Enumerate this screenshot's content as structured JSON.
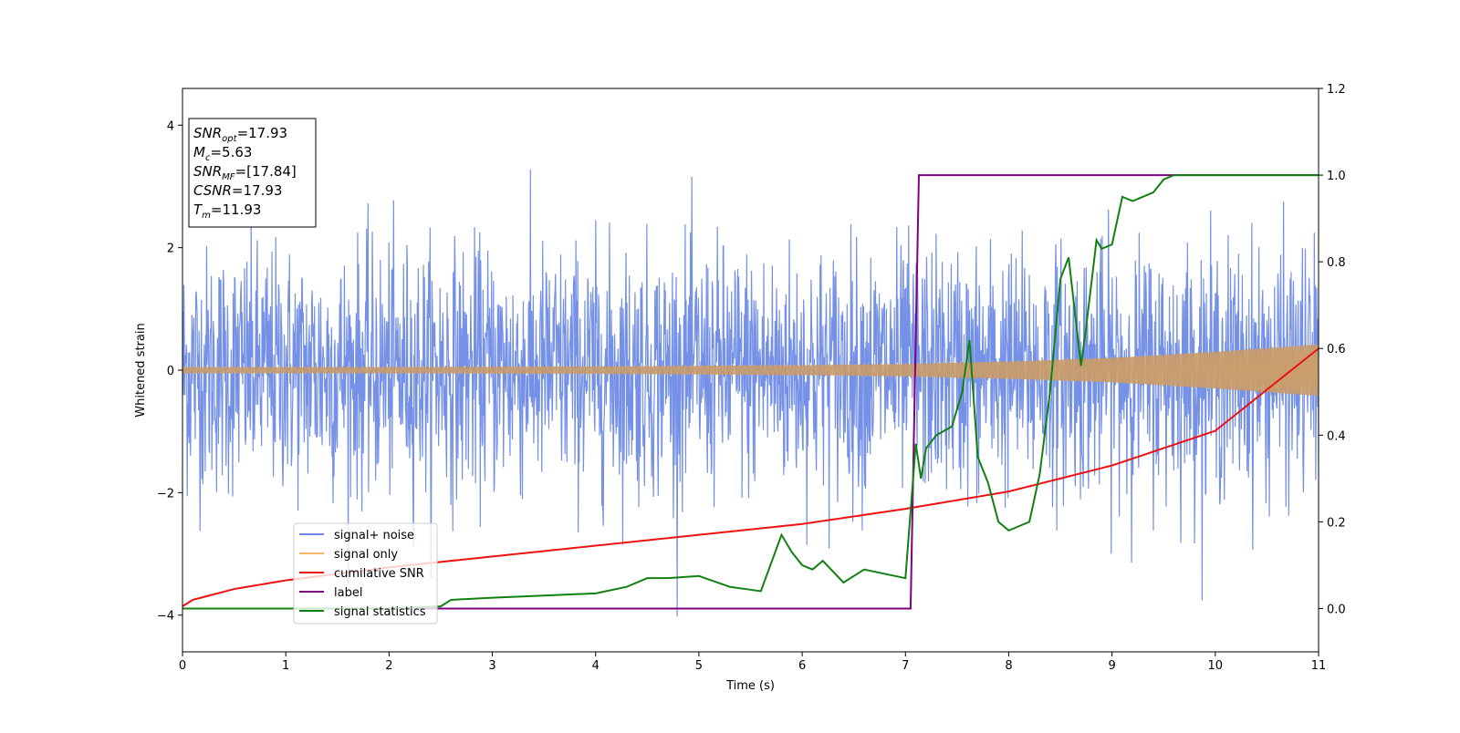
{
  "chart_data": {
    "type": "line",
    "title": "",
    "xlabel": "Time (s)",
    "ylabel": "Whitened strain",
    "y2label": "",
    "xlim": [
      0,
      11
    ],
    "ylim": [
      -4.6,
      4.6
    ],
    "y2lim": [
      -0.1,
      1.2
    ],
    "xticks": [
      "0",
      "1",
      "2",
      "3",
      "4",
      "5",
      "6",
      "7",
      "8",
      "9",
      "10",
      "11"
    ],
    "yticks": [
      "−4",
      "−2",
      "0",
      "2",
      "4"
    ],
    "y2ticks": [
      "0.0",
      "0.2",
      "0.4",
      "0.6",
      "0.8",
      "1.0",
      "1.2"
    ],
    "grid": false,
    "legend_position": "lower-left",
    "series": [
      {
        "name": "signal+ noise",
        "axis": "left",
        "color": "#6d8ae6",
        "description_values": {
          "envelope_min": -4.1,
          "envelope_max": 4.1,
          "std": 1.0
        }
      },
      {
        "name": "signal only",
        "axis": "left",
        "color": "#f5b862",
        "values": {
          "t": [
            0,
            2,
            4,
            6,
            7,
            8,
            9,
            10,
            11
          ],
          "amplitude": [
            0.05,
            0.05,
            0.06,
            0.08,
            0.1,
            0.14,
            0.2,
            0.3,
            0.42
          ]
        }
      },
      {
        "name": "cumilative SNR",
        "axis": "right",
        "color": "#ee1111",
        "x": [
          0,
          0.1,
          0.5,
          1,
          2,
          3,
          4,
          5,
          6,
          7,
          8,
          9,
          10,
          11
        ],
        "y": [
          0.005,
          0.02,
          0.045,
          0.065,
          0.095,
          0.12,
          0.145,
          0.17,
          0.195,
          0.23,
          0.27,
          0.33,
          0.41,
          0.6
        ]
      },
      {
        "name": "label",
        "axis": "right",
        "color": "#800080",
        "x": [
          0,
          7.05,
          7.13,
          11
        ],
        "y": [
          0,
          0,
          1,
          1
        ]
      },
      {
        "name": "signal statistics",
        "axis": "right",
        "color": "#128012",
        "x": [
          0,
          1,
          2,
          2.5,
          2.6,
          3,
          3.5,
          4,
          4.3,
          4.5,
          4.7,
          5,
          5.3,
          5.6,
          5.8,
          5.9,
          6,
          6.1,
          6.2,
          6.4,
          6.6,
          6.8,
          7,
          7.1,
          7.15,
          7.2,
          7.3,
          7.45,
          7.55,
          7.62,
          7.7,
          7.8,
          7.9,
          8,
          8.1,
          8.2,
          8.3,
          8.4,
          8.5,
          8.58,
          8.7,
          8.75,
          8.85,
          8.9,
          9,
          9.1,
          9.2,
          9.4,
          9.5,
          9.6,
          10,
          11
        ],
        "y": [
          0,
          0,
          0,
          0.005,
          0.02,
          0.025,
          0.03,
          0.035,
          0.05,
          0.07,
          0.07,
          0.075,
          0.05,
          0.04,
          0.17,
          0.13,
          0.1,
          0.09,
          0.11,
          0.06,
          0.09,
          0.08,
          0.07,
          0.38,
          0.3,
          0.37,
          0.4,
          0.42,
          0.5,
          0.62,
          0.35,
          0.29,
          0.2,
          0.18,
          0.19,
          0.2,
          0.31,
          0.5,
          0.76,
          0.81,
          0.56,
          0.65,
          0.85,
          0.83,
          0.84,
          0.95,
          0.94,
          0.96,
          0.99,
          1.0,
          1.0,
          1.0
        ]
      }
    ],
    "info_box": {
      "snr_opt": {
        "base": "SNR",
        "sub": "opt",
        "value": "=17.93"
      },
      "mc": {
        "base": "M",
        "sub": "c",
        "value": "=5.63"
      },
      "snr_mf": {
        "base": "SNR",
        "sub": "MF",
        "value": "=[17.84]"
      },
      "csnr": {
        "base": "CSNR",
        "sub": "",
        "value": "=17.93"
      },
      "tm": {
        "base": "T",
        "sub": "m",
        "value": "=11.93"
      }
    }
  }
}
